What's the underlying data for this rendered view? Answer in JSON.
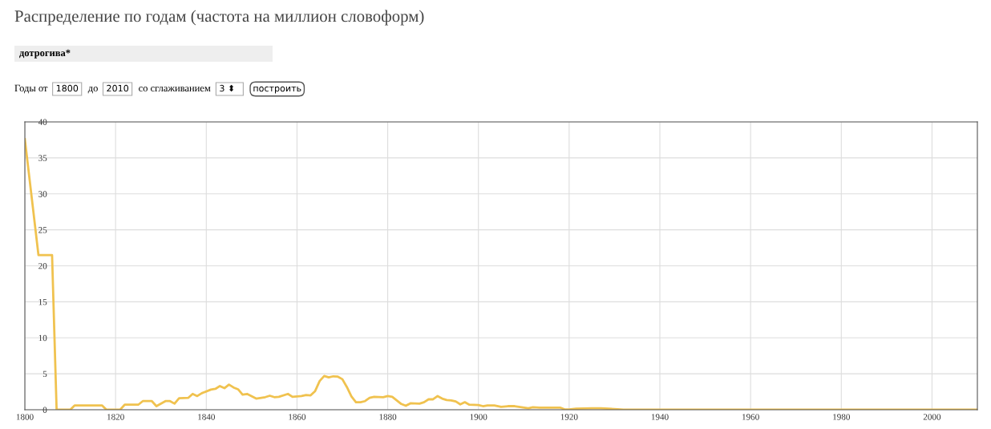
{
  "chart_data": {
    "type": "line",
    "title": "Распределение по годам (частота на миллион словоформ)",
    "subtitle": "дотрогива*",
    "annotations": [
      "Годы от",
      "1800",
      "до",
      "2010",
      "со сглаживанием",
      "3 ⬍",
      "построить"
    ],
    "series": [
      {
        "color": "#f0c24f",
        "x": [
          1800,
          1803,
          1806,
          1807,
          1810,
          1811,
          1817,
          1818,
          1821,
          1822,
          1825,
          1826,
          1828,
          1829,
          1831,
          1832,
          1833,
          1834,
          1836,
          1837,
          1838,
          1839,
          1841,
          1842,
          1843,
          1844,
          1845,
          1846,
          1847,
          1848,
          1849,
          1851,
          1853,
          1854,
          1855,
          1856,
          1858,
          1859,
          1861,
          1862,
          1863,
          1864,
          1865,
          1866,
          1867,
          1868,
          1869,
          1870,
          1871,
          1872,
          1873,
          1874,
          1875,
          1876,
          1877,
          1879,
          1880,
          1881,
          1882,
          1883,
          1884,
          1885,
          1887,
          1888,
          1889,
          1890,
          1891,
          1892,
          1893,
          1894,
          1895,
          1896,
          1897,
          1898,
          1900,
          1901,
          1902,
          1903.5,
          1905,
          1906.5,
          1908,
          1909.5,
          1911,
          1912,
          1913.5,
          1918,
          1919,
          1920,
          1921.5,
          1925,
          1927,
          1930,
          1932,
          1950,
          1980,
          2010
        ],
        "values": [
          37.6,
          21.5,
          21.5,
          0,
          0,
          0.6,
          0.6,
          0,
          0,
          0.7,
          0.7,
          1.2,
          1.2,
          0.5,
          1.2,
          1.2,
          0.85,
          1.6,
          1.65,
          2.2,
          1.9,
          2.3,
          2.8,
          2.9,
          3.3,
          3.0,
          3.5,
          3.1,
          2.85,
          2.1,
          2.2,
          1.55,
          1.75,
          1.95,
          1.75,
          1.8,
          2.2,
          1.8,
          1.9,
          2.05,
          2.0,
          2.6,
          4.0,
          4.7,
          4.5,
          4.65,
          4.6,
          4.25,
          3.15,
          1.85,
          1.05,
          1.05,
          1.2,
          1.65,
          1.8,
          1.75,
          1.9,
          1.8,
          1.3,
          0.8,
          0.55,
          0.9,
          0.85,
          1.05,
          1.45,
          1.45,
          1.9,
          1.55,
          1.35,
          1.3,
          1.15,
          0.75,
          1.05,
          0.7,
          0.65,
          0.5,
          0.6,
          0.6,
          0.4,
          0.5,
          0.5,
          0.35,
          0.2,
          0.35,
          0.3,
          0.3,
          0.05,
          0.05,
          0.15,
          0.2,
          0.2,
          0.1,
          0,
          0,
          0,
          0
        ]
      }
    ],
    "xlim": [
      1800,
      2010
    ],
    "xticks": [
      1800,
      1820,
      1840,
      1860,
      1880,
      1900,
      1920,
      1940,
      1960,
      1980,
      2000
    ],
    "ylim": [
      0,
      40
    ],
    "yticks": [
      0,
      5,
      10,
      15,
      20,
      25,
      30,
      35,
      40
    ],
    "grid": true,
    "marker": "none",
    "line_style": "solid"
  }
}
